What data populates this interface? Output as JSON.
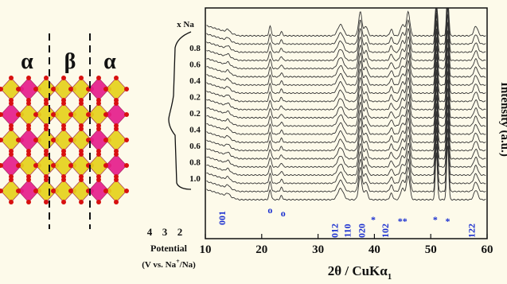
{
  "structure": {
    "labels": [
      "α",
      "β",
      "α"
    ]
  },
  "potential": {
    "axis_label": "x Na",
    "na_ticks": [
      "0.8",
      "0.6",
      "0.4",
      "0.2",
      "0.2",
      "0.4",
      "0.6",
      "0.8",
      "1.0"
    ],
    "potential_ticks": [
      "4",
      "3",
      "2"
    ],
    "xlabel": "Potential",
    "units_start": "(V vs. Na",
    "units_sup": "+",
    "units_end": "/Na)"
  },
  "xrd": {
    "xticks": [
      "10",
      "20",
      "30",
      "40",
      "50",
      "60"
    ],
    "xlabel": "2θ / CuKα",
    "xlabel_sub": "1",
    "ylabel": "Intensity (a.u.)",
    "peak_labels": [
      "001",
      "o",
      "o",
      "012",
      "110",
      "020",
      "*",
      "102",
      "**",
      "*",
      "*",
      "122"
    ]
  }
}
